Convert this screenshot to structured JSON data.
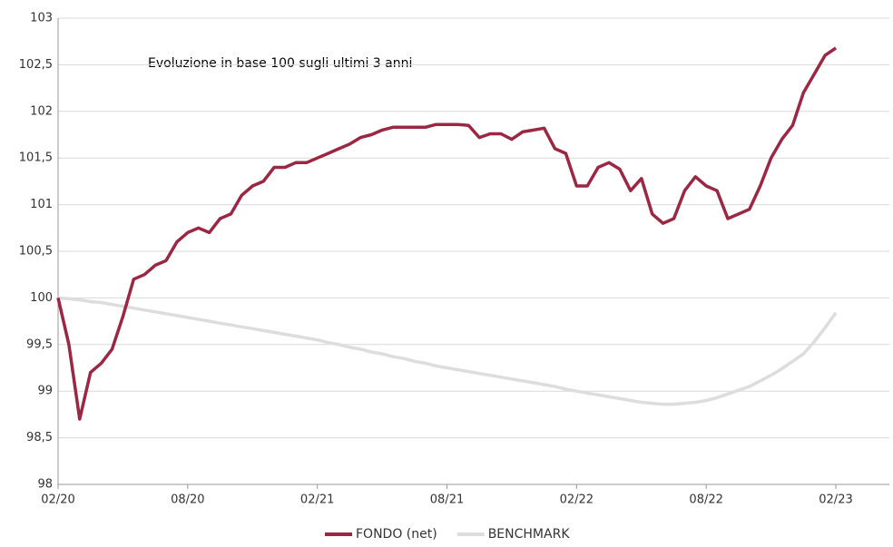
{
  "chart_data": {
    "type": "line",
    "annotation": "Evoluzione in base 100 sugli ultimi 3 anni",
    "categories": [
      "02/20",
      null,
      null,
      null,
      null,
      null,
      null,
      null,
      null,
      null,
      null,
      null,
      "08/20",
      null,
      null,
      null,
      null,
      null,
      null,
      null,
      null,
      null,
      null,
      null,
      "02/21",
      null,
      null,
      null,
      null,
      null,
      null,
      null,
      null,
      null,
      null,
      null,
      "08/21",
      null,
      null,
      null,
      null,
      null,
      null,
      null,
      null,
      null,
      null,
      null,
      "02/22",
      null,
      null,
      null,
      null,
      null,
      null,
      null,
      null,
      null,
      null,
      null,
      "08/22",
      null,
      null,
      null,
      null,
      null,
      null,
      null,
      null,
      null,
      null,
      null,
      "02/23"
    ],
    "series": [
      {
        "name": "FONDO (net)",
        "color": "#9b2743",
        "values": [
          100,
          99.5,
          98.7,
          99.2,
          99.3,
          99.45,
          99.8,
          100.2,
          100.25,
          100.35,
          100.4,
          100.6,
          100.7,
          100.75,
          100.7,
          100.85,
          100.9,
          101.1,
          101.2,
          101.25,
          101.4,
          101.4,
          101.45,
          101.45,
          101.5,
          101.55,
          101.6,
          101.65,
          101.72,
          101.75,
          101.8,
          101.83,
          101.83,
          101.83,
          101.83,
          101.86,
          101.86,
          101.86,
          101.85,
          101.72,
          101.76,
          101.76,
          101.7,
          101.78,
          101.8,
          101.82,
          101.6,
          101.55,
          101.2,
          101.2,
          101.4,
          101.45,
          101.38,
          101.15,
          101.28,
          100.9,
          100.8,
          100.85,
          101.15,
          101.3,
          101.2,
          101.15,
          100.85,
          100.9,
          100.95,
          101.2,
          101.5,
          101.7,
          101.85,
          102.2,
          102.4,
          102.6,
          102.68
        ]
      },
      {
        "name": "BENCHMARK",
        "color": "#dddddd",
        "values": [
          100,
          99.99,
          99.98,
          99.96,
          99.95,
          99.93,
          99.91,
          99.89,
          99.87,
          99.85,
          99.83,
          99.81,
          99.79,
          99.77,
          99.75,
          99.73,
          99.71,
          99.69,
          99.67,
          99.65,
          99.63,
          99.61,
          99.59,
          99.57,
          99.55,
          99.52,
          99.5,
          99.47,
          99.45,
          99.42,
          99.4,
          99.37,
          99.35,
          99.32,
          99.3,
          99.27,
          99.25,
          99.23,
          99.21,
          99.19,
          99.17,
          99.15,
          99.13,
          99.11,
          99.09,
          99.07,
          99.05,
          99.02,
          99,
          98.98,
          98.96,
          98.94,
          98.92,
          98.9,
          98.88,
          98.87,
          98.86,
          98.86,
          98.87,
          98.88,
          98.9,
          98.93,
          98.97,
          99.01,
          99.05,
          99.11,
          99.17,
          99.24,
          99.32,
          99.4,
          99.53,
          99.68,
          99.84
        ]
      }
    ],
    "ylim": [
      98,
      103
    ],
    "yticks": [
      98,
      {
        "value": 98.5,
        "label": "98,5"
      },
      99,
      {
        "value": 99.5,
        "label": "99,5"
      },
      100,
      {
        "value": 100.5,
        "label": "100,5"
      },
      101,
      {
        "value": 101.5,
        "label": "101,5"
      },
      102,
      {
        "value": 102.5,
        "label": "102,5"
      },
      103
    ],
    "grid": true,
    "legend": "bottom"
  }
}
